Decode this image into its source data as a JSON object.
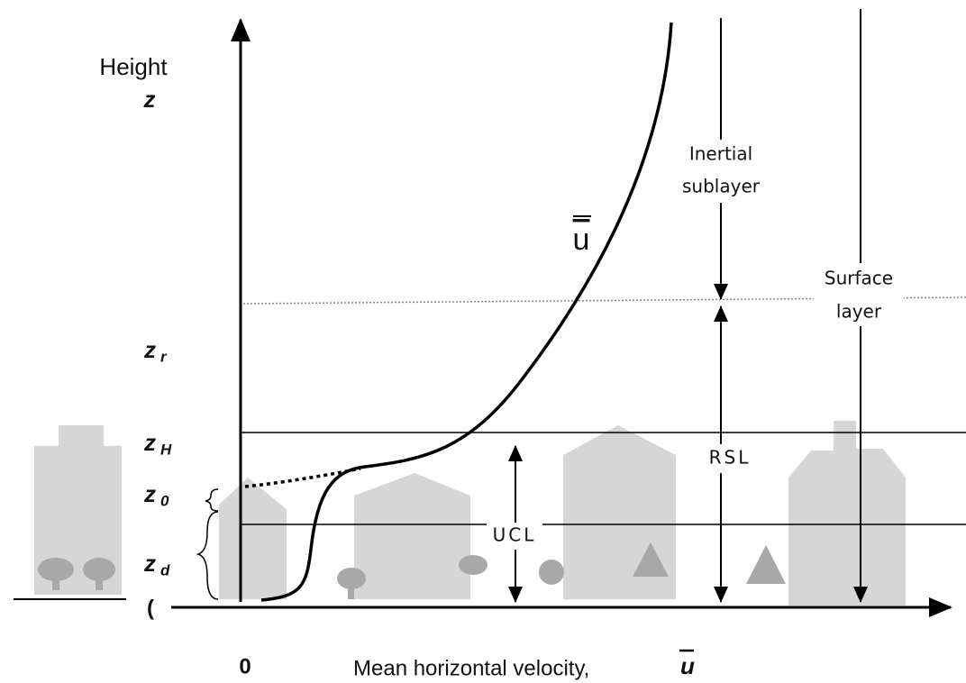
{
  "axes": {
    "y_label": "Height",
    "y_symbol": "z",
    "x_label": "Mean horizontal velocity,",
    "x_symbol": "u",
    "origin": "0"
  },
  "profile_label": "u",
  "levels": [
    {
      "symbol": "z",
      "sub": "r"
    },
    {
      "symbol": "z",
      "sub": "H"
    },
    {
      "symbol": "z",
      "sub": "0"
    },
    {
      "symbol": "z",
      "sub": "d"
    }
  ],
  "ground_label": "(",
  "layers": {
    "inertial": [
      "Inertial",
      "sublayer"
    ],
    "surface": [
      "Surface",
      "layer"
    ],
    "rsl": "RSL",
    "ucl": "UCL"
  }
}
